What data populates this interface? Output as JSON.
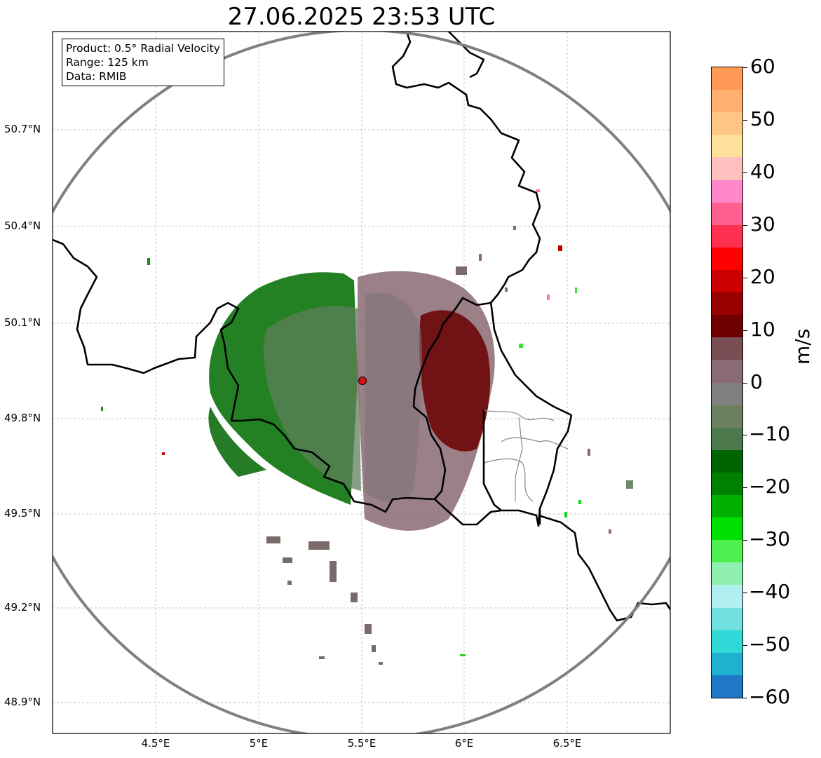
{
  "title": "27.06.2025 23:53 UTC",
  "info_box": {
    "product": "Product: 0.5° Radial Velocity",
    "range": "Range: 125 km",
    "data": "Data: RMIB"
  },
  "lat_labels": [
    "50.7°N",
    "50.4°N",
    "50.1°N",
    "49.8°N",
    "49.5°N",
    "49.2°N",
    "48.9°N"
  ],
  "lon_labels": [
    "4.5°E",
    "5°E",
    "5.5°E",
    "6°E",
    "6.5°E"
  ],
  "colorbar": {
    "unit": "m/s",
    "ticks": [
      "60",
      "50",
      "40",
      "30",
      "20",
      "10",
      "0",
      "−10",
      "−20",
      "−30",
      "−40",
      "−50",
      "−60"
    ],
    "range": [
      -60,
      60
    ],
    "colors_top_to_bottom": [
      "#ff9955",
      "#ffb070",
      "#ffc585",
      "#ffe09a",
      "#ffc0c0",
      "#ff88cc",
      "#ff6090",
      "#ff3050",
      "#ff0000",
      "#cc0000",
      "#990000",
      "#700000",
      "#7a4c54",
      "#8a6a74",
      "#808080",
      "#6a8060",
      "#4c7a4c",
      "#006400",
      "#008000",
      "#00b000",
      "#00e000",
      "#50f050",
      "#90f0b0",
      "#b0f0f0",
      "#70e0e0",
      "#30d8d8",
      "#20b0d0",
      "#1f78c8"
    ]
  },
  "radar_site": {
    "lon": 5.505,
    "lat": 49.914
  },
  "map_extent": {
    "lon": [
      4.0,
      7.0
    ],
    "lat": [
      48.8,
      51.0
    ]
  },
  "colors": {
    "grid": "#b0b0b0",
    "range_ring": "#808080",
    "borders": "#000000",
    "marker": "#e01010"
  }
}
